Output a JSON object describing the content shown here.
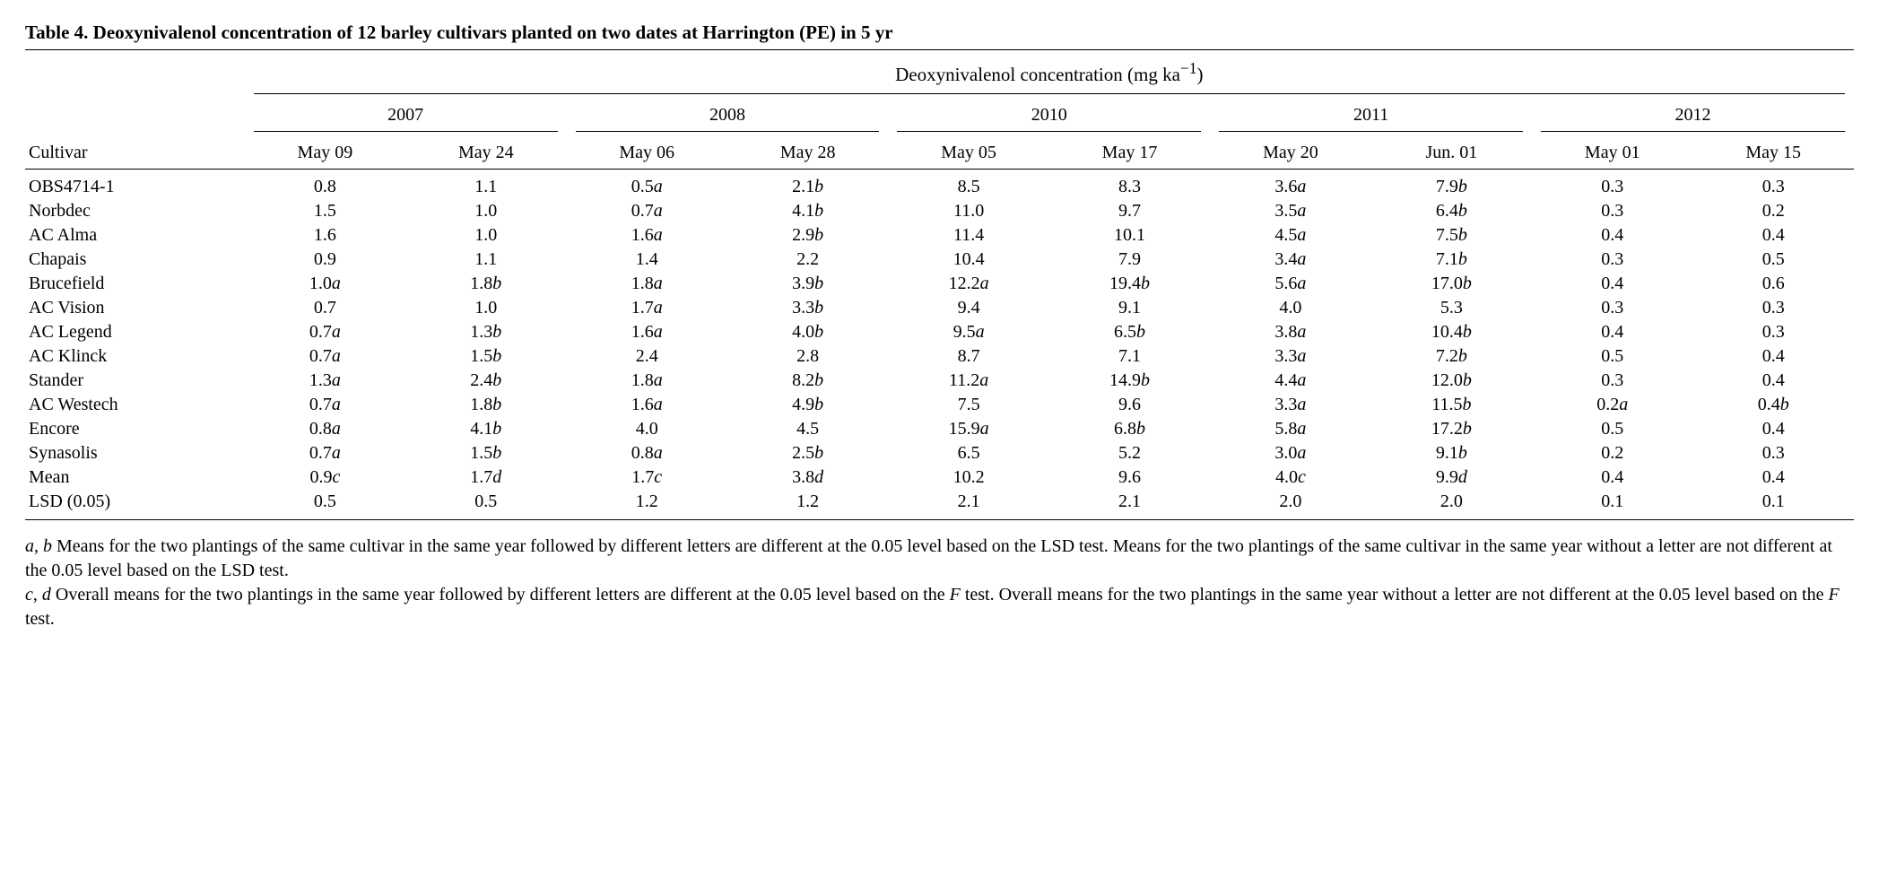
{
  "title": "Table 4. Deoxynivalenol concentration of 12 barley cultivars planted on two dates at Harrington (PE) in 5 yr",
  "spanner": "Deoxynivalenol concentration (mg ka",
  "spanner_sup": "−1",
  "spanner_close": ")",
  "row_header": "Cultivar",
  "years": [
    "2007",
    "2008",
    "2010",
    "2011",
    "2012"
  ],
  "dates": [
    "May 09",
    "May 24",
    "May 06",
    "May 28",
    "May 05",
    "May 17",
    "May 20",
    "Jun. 01",
    "May 01",
    "May 15"
  ],
  "rows": [
    {
      "c": "OBS4714-1",
      "v": [
        [
          "0.8",
          ""
        ],
        [
          "1.1",
          ""
        ],
        [
          "0.5",
          "a"
        ],
        [
          "2.1",
          "b"
        ],
        [
          "8.5",
          ""
        ],
        [
          "8.3",
          ""
        ],
        [
          "3.6",
          "a"
        ],
        [
          "7.9",
          "b"
        ],
        [
          "0.3",
          ""
        ],
        [
          "0.3",
          ""
        ]
      ]
    },
    {
      "c": "Norbdec",
      "v": [
        [
          "1.5",
          ""
        ],
        [
          "1.0",
          ""
        ],
        [
          "0.7",
          "a"
        ],
        [
          "4.1",
          "b"
        ],
        [
          "11.0",
          ""
        ],
        [
          "9.7",
          ""
        ],
        [
          "3.5",
          "a"
        ],
        [
          "6.4",
          "b"
        ],
        [
          "0.3",
          ""
        ],
        [
          "0.2",
          ""
        ]
      ]
    },
    {
      "c": "AC Alma",
      "v": [
        [
          "1.6",
          ""
        ],
        [
          "1.0",
          ""
        ],
        [
          "1.6",
          "a"
        ],
        [
          "2.9",
          "b"
        ],
        [
          "11.4",
          ""
        ],
        [
          "10.1",
          ""
        ],
        [
          "4.5",
          "a"
        ],
        [
          "7.5",
          "b"
        ],
        [
          "0.4",
          ""
        ],
        [
          "0.4",
          ""
        ]
      ]
    },
    {
      "c": "Chapais",
      "v": [
        [
          "0.9",
          ""
        ],
        [
          "1.1",
          ""
        ],
        [
          "1.4",
          ""
        ],
        [
          "2.2",
          ""
        ],
        [
          "10.4",
          ""
        ],
        [
          "7.9",
          ""
        ],
        [
          "3.4",
          "a"
        ],
        [
          "7.1",
          "b"
        ],
        [
          "0.3",
          ""
        ],
        [
          "0.5",
          ""
        ]
      ]
    },
    {
      "c": "Brucefield",
      "v": [
        [
          "1.0",
          "a"
        ],
        [
          "1.8",
          "b"
        ],
        [
          "1.8",
          "a"
        ],
        [
          "3.9",
          "b"
        ],
        [
          "12.2",
          "a"
        ],
        [
          "19.4",
          "b"
        ],
        [
          "5.6",
          "a"
        ],
        [
          "17.0",
          "b"
        ],
        [
          "0.4",
          ""
        ],
        [
          "0.6",
          ""
        ]
      ]
    },
    {
      "c": "AC Vision",
      "v": [
        [
          "0.7",
          ""
        ],
        [
          "1.0",
          ""
        ],
        [
          "1.7",
          "a"
        ],
        [
          "3.3",
          "b"
        ],
        [
          "9.4",
          ""
        ],
        [
          "9.1",
          ""
        ],
        [
          "4.0",
          ""
        ],
        [
          "5.3",
          ""
        ],
        [
          "0.3",
          ""
        ],
        [
          "0.3",
          ""
        ]
      ]
    },
    {
      "c": "AC Legend",
      "v": [
        [
          "0.7",
          "a"
        ],
        [
          "1.3",
          "b"
        ],
        [
          "1.6",
          "a"
        ],
        [
          "4.0",
          "b"
        ],
        [
          "9.5",
          "a"
        ],
        [
          "6.5",
          "b"
        ],
        [
          "3.8",
          "a"
        ],
        [
          "10.4",
          "b"
        ],
        [
          "0.4",
          ""
        ],
        [
          "0.3",
          ""
        ]
      ]
    },
    {
      "c": "AC Klinck",
      "v": [
        [
          "0.7",
          "a"
        ],
        [
          "1.5",
          "b"
        ],
        [
          "2.4",
          ""
        ],
        [
          "2.8",
          ""
        ],
        [
          "8.7",
          ""
        ],
        [
          "7.1",
          ""
        ],
        [
          "3.3",
          "a"
        ],
        [
          "7.2",
          "b"
        ],
        [
          "0.5",
          ""
        ],
        [
          "0.4",
          ""
        ]
      ]
    },
    {
      "c": "Stander",
      "v": [
        [
          "1.3",
          "a"
        ],
        [
          "2.4",
          "b"
        ],
        [
          "1.8",
          "a"
        ],
        [
          "8.2",
          "b"
        ],
        [
          "11.2",
          "a"
        ],
        [
          "14.9",
          "b"
        ],
        [
          "4.4",
          "a"
        ],
        [
          "12.0",
          "b"
        ],
        [
          "0.3",
          ""
        ],
        [
          "0.4",
          ""
        ]
      ]
    },
    {
      "c": "AC Westech",
      "v": [
        [
          "0.7",
          "a"
        ],
        [
          "1.8",
          "b"
        ],
        [
          "1.6",
          "a"
        ],
        [
          "4.9",
          "b"
        ],
        [
          "7.5",
          ""
        ],
        [
          "9.6",
          ""
        ],
        [
          "3.3",
          "a"
        ],
        [
          "11.5",
          "b"
        ],
        [
          "0.2",
          "a"
        ],
        [
          "0.4",
          "b"
        ]
      ]
    },
    {
      "c": "Encore",
      "v": [
        [
          "0.8",
          "a"
        ],
        [
          "4.1",
          "b"
        ],
        [
          "4.0",
          ""
        ],
        [
          "4.5",
          ""
        ],
        [
          "15.9",
          "a"
        ],
        [
          "6.8",
          "b"
        ],
        [
          "5.8",
          "a"
        ],
        [
          "17.2",
          "b"
        ],
        [
          "0.5",
          ""
        ],
        [
          "0.4",
          ""
        ]
      ]
    },
    {
      "c": "Synasolis",
      "v": [
        [
          "0.7",
          "a"
        ],
        [
          "1.5",
          "b"
        ],
        [
          "0.8",
          "a"
        ],
        [
          "2.5",
          "b"
        ],
        [
          "6.5",
          ""
        ],
        [
          "5.2",
          ""
        ],
        [
          "3.0",
          "a"
        ],
        [
          "9.1",
          "b"
        ],
        [
          "0.2",
          ""
        ],
        [
          "0.3",
          ""
        ]
      ]
    },
    {
      "c": "Mean",
      "v": [
        [
          "0.9",
          "c"
        ],
        [
          "1.7",
          "d"
        ],
        [
          "1.7",
          "c"
        ],
        [
          "3.8",
          "d"
        ],
        [
          "10.2",
          ""
        ],
        [
          "9.6",
          ""
        ],
        [
          "4.0",
          "c"
        ],
        [
          "9.9",
          "d"
        ],
        [
          "0.4",
          ""
        ],
        [
          "0.4",
          ""
        ]
      ]
    },
    {
      "c": "LSD (0.05)",
      "v": [
        [
          "0.5",
          ""
        ],
        [
          "0.5",
          ""
        ],
        [
          "1.2",
          ""
        ],
        [
          "1.2",
          ""
        ],
        [
          "2.1",
          ""
        ],
        [
          "2.1",
          ""
        ],
        [
          "2.0",
          ""
        ],
        [
          "2.0",
          ""
        ],
        [
          "0.1",
          ""
        ],
        [
          "0.1",
          ""
        ]
      ]
    }
  ],
  "footnotes": {
    "ab_prefix": "a",
    "ab_mid": ", ",
    "ab_b": "b",
    "ab_text": " Means for the two plantings of the same cultivar in the same year followed by different letters are different at the 0.05 level based on the LSD test. Means for the two plantings of the same cultivar in the same year without a letter are not different at the 0.05 level based on the LSD test.",
    "cd_prefix": "c",
    "cd_mid": ", ",
    "cd_d": "d",
    "cd_text1": " Overall means for the two plantings in the same year followed by different letters are different at the 0.05 level based on the ",
    "cd_F1": "F",
    "cd_text2": " test. Overall means for the two plantings in the same year without a letter are not different at the 0.05 level based on the ",
    "cd_F2": "F",
    "cd_text3": " test."
  }
}
